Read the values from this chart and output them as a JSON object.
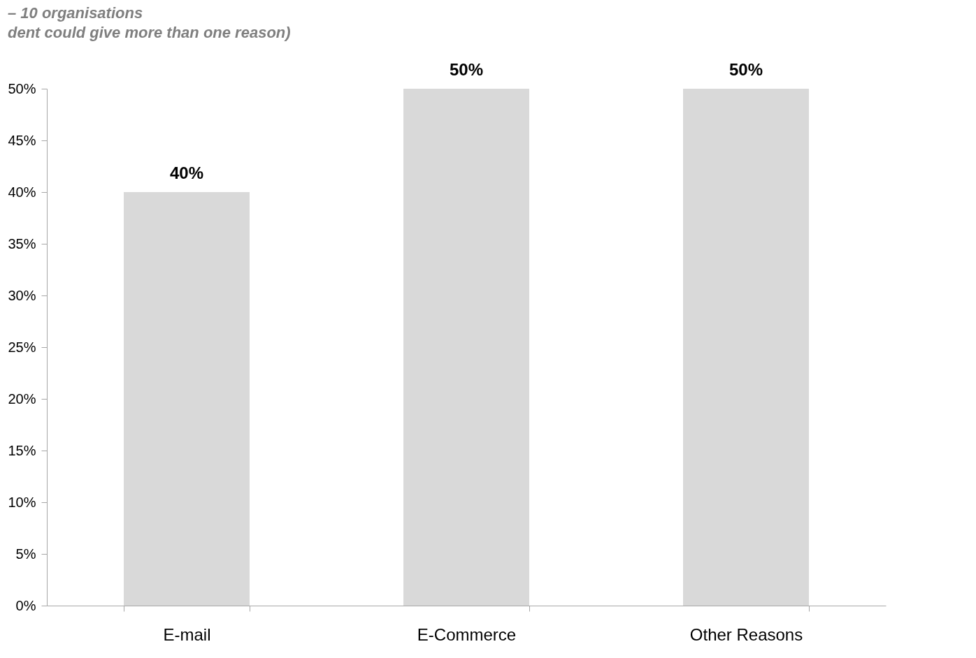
{
  "chart_data": {
    "type": "bar",
    "title": "– 10 organisations",
    "subtitle": "dent could give more than one reason)",
    "categories": [
      "E-mail",
      "E-Commerce",
      "Other Reasons"
    ],
    "values": [
      40,
      50,
      50
    ],
    "color": "#d9d9d9",
    "value_labels": [
      "40%",
      "50%",
      "50%"
    ],
    "ylim": [
      0,
      50
    ],
    "yticks": [
      {
        "value": 0,
        "label": "0%"
      },
      {
        "value": 5,
        "label": "5%"
      },
      {
        "value": 10,
        "label": "10%"
      },
      {
        "value": 15,
        "label": "15%"
      },
      {
        "value": 20,
        "label": "20%"
      },
      {
        "value": 25,
        "label": "25%"
      },
      {
        "value": 30,
        "label": "30%"
      },
      {
        "value": 35,
        "label": "35%"
      },
      {
        "value": 40,
        "label": "40%"
      },
      {
        "value": 45,
        "label": "45%"
      },
      {
        "value": 50,
        "label": "50%"
      }
    ]
  }
}
